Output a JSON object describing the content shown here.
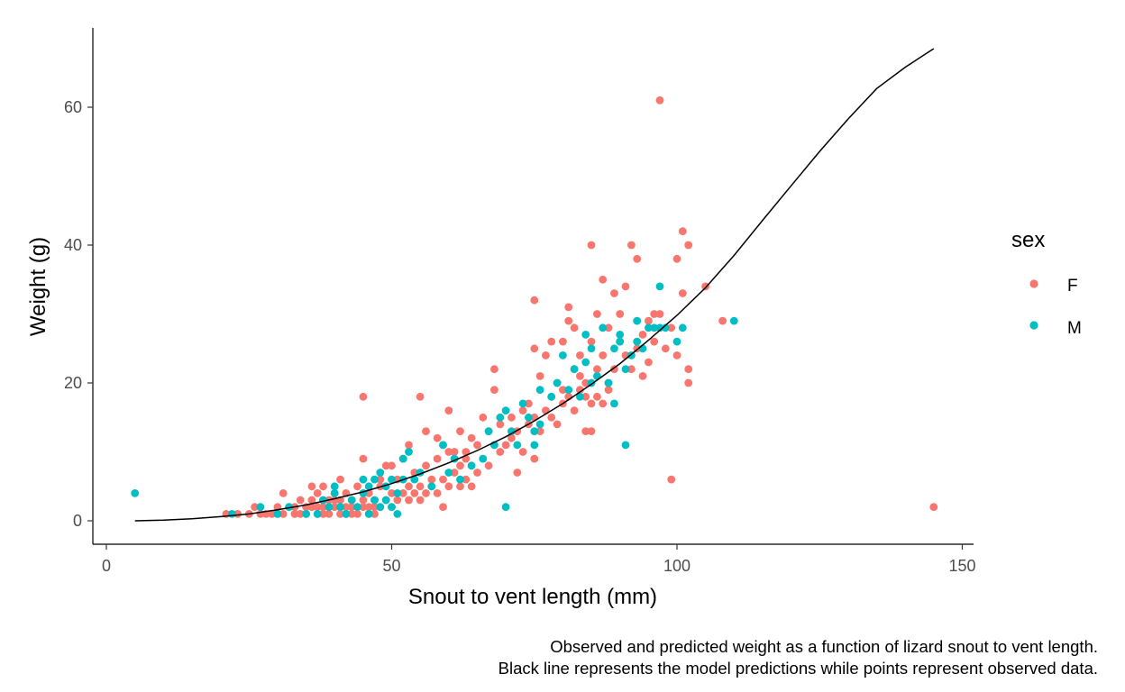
{
  "chart_data": {
    "type": "scatter",
    "xlabel": "Snout to vent length (mm)",
    "ylabel": "Weight (g)",
    "xlim": [
      0,
      150
    ],
    "ylim": [
      0,
      70
    ],
    "x_ticks": [
      "0",
      "50",
      "100",
      "150"
    ],
    "y_ticks": [
      "0",
      "20",
      "40",
      "60"
    ],
    "grid": false,
    "legend": {
      "title": "sex",
      "position": "right",
      "entries": [
        {
          "label": "F",
          "color": "#F8766D"
        },
        {
          "label": "M",
          "color": "#00BFC4"
        }
      ]
    },
    "series": [
      {
        "name": "F",
        "color": "#F8766D",
        "points": [
          [
            21,
            1
          ],
          [
            23,
            1
          ],
          [
            25,
            1
          ],
          [
            26,
            2
          ],
          [
            27,
            1
          ],
          [
            28,
            1
          ],
          [
            29,
            1
          ],
          [
            30,
            1
          ],
          [
            30,
            2
          ],
          [
            31,
            1
          ],
          [
            31,
            4
          ],
          [
            32,
            2
          ],
          [
            33,
            1
          ],
          [
            33,
            2
          ],
          [
            34,
            1
          ],
          [
            34,
            3
          ],
          [
            35,
            2
          ],
          [
            35,
            1
          ],
          [
            36,
            2
          ],
          [
            36,
            3
          ],
          [
            36,
            5
          ],
          [
            37,
            1
          ],
          [
            37,
            2
          ],
          [
            37,
            4
          ],
          [
            38,
            1
          ],
          [
            38,
            2
          ],
          [
            38,
            3
          ],
          [
            38,
            5
          ],
          [
            39,
            2
          ],
          [
            39,
            3
          ],
          [
            39,
            1
          ],
          [
            40,
            2
          ],
          [
            40,
            3
          ],
          [
            40,
            4
          ],
          [
            41,
            1
          ],
          [
            41,
            2
          ],
          [
            41,
            3
          ],
          [
            41,
            6
          ],
          [
            42,
            2
          ],
          [
            42,
            1
          ],
          [
            42,
            4
          ],
          [
            43,
            2
          ],
          [
            43,
            3
          ],
          [
            43,
            1
          ],
          [
            44,
            2
          ],
          [
            44,
            5
          ],
          [
            44,
            1
          ],
          [
            45,
            2
          ],
          [
            45,
            3
          ],
          [
            45,
            9
          ],
          [
            45,
            18
          ],
          [
            46,
            1
          ],
          [
            46,
            2
          ],
          [
            46,
            4
          ],
          [
            47,
            2
          ],
          [
            47,
            3
          ],
          [
            47,
            1
          ],
          [
            48,
            2
          ],
          [
            48,
            5
          ],
          [
            48,
            6
          ],
          [
            49,
            3
          ],
          [
            49,
            8
          ],
          [
            50,
            2
          ],
          [
            50,
            4
          ],
          [
            50,
            8
          ],
          [
            51,
            3
          ],
          [
            51,
            6
          ],
          [
            52,
            4
          ],
          [
            52,
            9
          ],
          [
            53,
            3
          ],
          [
            53,
            5
          ],
          [
            53,
            11
          ],
          [
            54,
            4
          ],
          [
            54,
            7
          ],
          [
            55,
            3
          ],
          [
            55,
            5
          ],
          [
            55,
            18
          ],
          [
            56,
            4
          ],
          [
            56,
            8
          ],
          [
            56,
            13
          ],
          [
            57,
            5
          ],
          [
            57,
            6
          ],
          [
            58,
            4
          ],
          [
            58,
            9
          ],
          [
            58,
            12
          ],
          [
            59,
            2
          ],
          [
            59,
            6
          ],
          [
            59,
            11
          ],
          [
            60,
            5
          ],
          [
            60,
            10
          ],
          [
            60,
            16
          ],
          [
            61,
            7
          ],
          [
            61,
            10
          ],
          [
            62,
            5
          ],
          [
            62,
            8
          ],
          [
            62,
            13
          ],
          [
            63,
            6
          ],
          [
            63,
            9
          ],
          [
            63,
            10
          ],
          [
            64,
            5
          ],
          [
            64,
            8
          ],
          [
            64,
            12
          ],
          [
            65,
            7
          ],
          [
            65,
            11
          ],
          [
            66,
            9
          ],
          [
            66,
            15
          ],
          [
            67,
            8
          ],
          [
            67,
            13
          ],
          [
            68,
            11
          ],
          [
            68,
            19
          ],
          [
            68,
            22
          ],
          [
            69,
            10
          ],
          [
            69,
            14
          ],
          [
            70,
            11
          ],
          [
            71,
            12
          ],
          [
            71,
            15
          ],
          [
            72,
            13
          ],
          [
            72,
            7
          ],
          [
            73,
            10
          ],
          [
            73,
            16
          ],
          [
            74,
            14
          ],
          [
            74,
            17
          ],
          [
            75,
            9
          ],
          [
            75,
            15
          ],
          [
            75,
            25
          ],
          [
            75,
            32
          ],
          [
            76,
            13
          ],
          [
            76,
            21
          ],
          [
            77,
            16
          ],
          [
            77,
            24
          ],
          [
            78,
            15
          ],
          [
            78,
            18
          ],
          [
            78,
            26
          ],
          [
            79,
            14
          ],
          [
            79,
            20
          ],
          [
            80,
            17
          ],
          [
            80,
            19
          ],
          [
            80,
            26
          ],
          [
            81,
            18
          ],
          [
            81,
            29
          ],
          [
            81,
            31
          ],
          [
            82,
            16
          ],
          [
            82,
            22
          ],
          [
            82,
            28
          ],
          [
            83,
            19
          ],
          [
            83,
            21
          ],
          [
            83,
            24
          ],
          [
            84,
            13
          ],
          [
            84,
            18
          ],
          [
            84,
            20
          ],
          [
            85,
            13
          ],
          [
            85,
            17
          ],
          [
            85,
            26
          ],
          [
            85,
            40
          ],
          [
            86,
            18
          ],
          [
            86,
            22
          ],
          [
            86,
            30
          ],
          [
            87,
            17
          ],
          [
            87,
            24
          ],
          [
            87,
            35
          ],
          [
            88,
            19
          ],
          [
            88,
            20
          ],
          [
            88,
            28
          ],
          [
            89,
            33
          ],
          [
            89,
            22
          ],
          [
            90,
            26
          ],
          [
            90,
            30
          ],
          [
            91,
            34
          ],
          [
            91,
            24
          ],
          [
            92,
            22
          ],
          [
            92,
            40
          ],
          [
            93,
            25
          ],
          [
            93,
            38
          ],
          [
            94,
            27
          ],
          [
            94,
            21
          ],
          [
            95,
            29
          ],
          [
            95,
            23
          ],
          [
            96,
            26
          ],
          [
            96,
            30
          ],
          [
            97,
            30
          ],
          [
            97,
            61
          ],
          [
            98,
            25
          ],
          [
            99,
            6
          ],
          [
            99,
            28
          ],
          [
            100,
            38
          ],
          [
            100,
            24
          ],
          [
            101,
            42
          ],
          [
            101,
            33
          ],
          [
            102,
            40
          ],
          [
            102,
            22
          ],
          [
            102,
            20
          ],
          [
            105,
            34
          ],
          [
            108,
            29
          ],
          [
            145,
            2
          ]
        ]
      },
      {
        "name": "M",
        "color": "#00BFC4",
        "points": [
          [
            5,
            4
          ],
          [
            22,
            1
          ],
          [
            27,
            2
          ],
          [
            30,
            1
          ],
          [
            32,
            2
          ],
          [
            35,
            1
          ],
          [
            37,
            1
          ],
          [
            38,
            3
          ],
          [
            39,
            2
          ],
          [
            40,
            4
          ],
          [
            40,
            5
          ],
          [
            41,
            2
          ],
          [
            42,
            1
          ],
          [
            43,
            3
          ],
          [
            44,
            2
          ],
          [
            45,
            4
          ],
          [
            45,
            6
          ],
          [
            46,
            1
          ],
          [
            46,
            5
          ],
          [
            47,
            3
          ],
          [
            47,
            6
          ],
          [
            48,
            2
          ],
          [
            48,
            7
          ],
          [
            49,
            3
          ],
          [
            49,
            5
          ],
          [
            50,
            2
          ],
          [
            50,
            6
          ],
          [
            51,
            1
          ],
          [
            51,
            4
          ],
          [
            52,
            6
          ],
          [
            52,
            9
          ],
          [
            53,
            10
          ],
          [
            54,
            6
          ],
          [
            55,
            7
          ],
          [
            57,
            5
          ],
          [
            59,
            11
          ],
          [
            60,
            7
          ],
          [
            61,
            9
          ],
          [
            62,
            6
          ],
          [
            64,
            8
          ],
          [
            66,
            9
          ],
          [
            67,
            13
          ],
          [
            68,
            11
          ],
          [
            69,
            15
          ],
          [
            70,
            2
          ],
          [
            70,
            16
          ],
          [
            71,
            13
          ],
          [
            72,
            11
          ],
          [
            73,
            17
          ],
          [
            74,
            15
          ],
          [
            75,
            11
          ],
          [
            75,
            13
          ],
          [
            76,
            14
          ],
          [
            76,
            19
          ],
          [
            78,
            18
          ],
          [
            79,
            20
          ],
          [
            80,
            24
          ],
          [
            81,
            19
          ],
          [
            82,
            22
          ],
          [
            83,
            18
          ],
          [
            84,
            23
          ],
          [
            84,
            27
          ],
          [
            85,
            25
          ],
          [
            85,
            20
          ],
          [
            86,
            21
          ],
          [
            87,
            28
          ],
          [
            88,
            20
          ],
          [
            89,
            17
          ],
          [
            89,
            25
          ],
          [
            90,
            26
          ],
          [
            90,
            27
          ],
          [
            91,
            11
          ],
          [
            91,
            22
          ],
          [
            92,
            24
          ],
          [
            93,
            26
          ],
          [
            93,
            29
          ],
          [
            94,
            25
          ],
          [
            95,
            28
          ],
          [
            96,
            28
          ],
          [
            97,
            34
          ],
          [
            97,
            28
          ],
          [
            98,
            28
          ],
          [
            100,
            26
          ],
          [
            101,
            28
          ],
          [
            110,
            29
          ]
        ]
      }
    ],
    "model_line": {
      "color": "#000000",
      "x": [
        5,
        10,
        15,
        20,
        25,
        30,
        35,
        40,
        45,
        50,
        55,
        60,
        65,
        70,
        75,
        80,
        85,
        90,
        95,
        100,
        105,
        110,
        115,
        120,
        125,
        130,
        135,
        140,
        145
      ],
      "y": [
        0,
        0.1,
        0.3,
        0.6,
        1.0,
        1.6,
        2.3,
        3.2,
        4.2,
        5.4,
        6.8,
        8.4,
        10.2,
        12.2,
        14.5,
        17.0,
        19.8,
        22.8,
        26.2,
        29.8,
        33.8,
        38.5,
        43.6,
        48.6,
        53.6,
        58.3,
        62.7,
        65.8,
        68.5
      ]
    }
  },
  "caption": {
    "line1": "Observed and predicted weight as a function of lizard snout to vent length.",
    "line2": "Black line represents the model predictions while points represent observed data."
  }
}
